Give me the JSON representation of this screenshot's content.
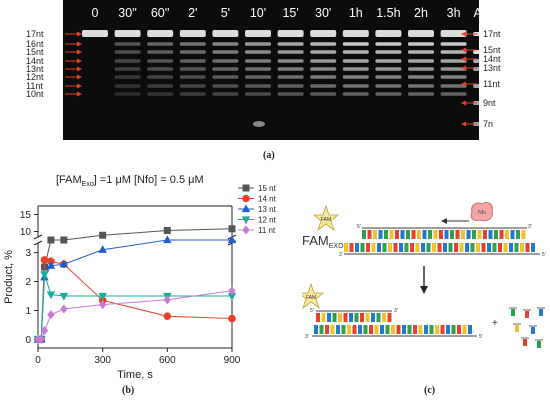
{
  "gel": {
    "lanes": [
      "0",
      "30''",
      "60''",
      "2'",
      "5'",
      "10'",
      "15'",
      "30'",
      "1h",
      "1.5h",
      "2h",
      "3h",
      "A+G"
    ],
    "left_markers": [
      "17nt",
      "16nt",
      "15nt",
      "14nt",
      "13nt",
      "12nt",
      "11nt",
      "10nt"
    ],
    "right_markers": [
      "17nt",
      "15nt",
      "14nt",
      "13nt",
      "11nt",
      "9nt",
      "7n"
    ],
    "colors": {
      "background": "#0c0c0c",
      "band": "#e8e8e8",
      "arrow": "#e8402a"
    }
  },
  "panel_labels": {
    "a": "(a)",
    "b": "(b)",
    "c": "(c)"
  },
  "chart_data": {
    "type": "line",
    "title_parts": {
      "fam": "[FAM",
      "exo": "Exo",
      "conc": "] =1 μM    [Nfo] = 0.5 μM"
    },
    "xlabel": "Time, s",
    "ylabel": "Product, %",
    "xlim": [
      0,
      900
    ],
    "x_ticks": [
      0,
      300,
      600,
      900
    ],
    "y_lower_ticks": [
      0,
      1,
      2,
      3
    ],
    "y_upper_ticks": [
      10,
      15
    ],
    "axis_break": {
      "lower": [
        -0.3,
        3.3
      ],
      "upper": [
        7.5,
        17.5
      ]
    },
    "legend_position": "top-right",
    "series": [
      {
        "name": "15 nt",
        "color": "#555555",
        "marker": "square",
        "x": [
          0,
          15,
          30,
          60,
          120,
          300,
          600,
          900
        ],
        "y": [
          0,
          0,
          2.5,
          3.8,
          7.5,
          8.9,
          10.3,
          10.8
        ]
      },
      {
        "name": "14 nt",
        "color": "#e8402a",
        "marker": "circle",
        "x": [
          0,
          15,
          30,
          60,
          120,
          300,
          600,
          900
        ],
        "y": [
          0,
          0,
          2.75,
          2.7,
          2.6,
          1.35,
          0.8,
          0.72
        ]
      },
      {
        "name": "13 nt",
        "color": "#1f5fd0",
        "marker": "triangle-up",
        "x": [
          0,
          15,
          30,
          60,
          120,
          300,
          600,
          900
        ],
        "y": [
          0,
          0,
          2.15,
          2.55,
          2.6,
          3.1,
          3.45,
          3.47
        ]
      },
      {
        "name": "12 nt",
        "color": "#10b09a",
        "marker": "triangle-down",
        "x": [
          0,
          15,
          30,
          60,
          120,
          300,
          600,
          900
        ],
        "y": [
          0,
          0,
          2.25,
          1.55,
          1.5,
          1.5,
          1.5,
          1.5
        ]
      },
      {
        "name": "11 nt",
        "color": "#c77ad8",
        "marker": "diamond",
        "x": [
          0,
          15,
          30,
          60,
          120,
          300,
          600,
          900
        ],
        "y": [
          0,
          0,
          0.3,
          0.85,
          1.05,
          1.2,
          1.37,
          1.68
        ]
      }
    ]
  },
  "schematic": {
    "fam_label": "FAM",
    "exo_label": "FAM",
    "exo_sub": "EXO",
    "nfo_label": "Nfo",
    "end3": "3'",
    "end5": "5'",
    "plus": "+"
  }
}
